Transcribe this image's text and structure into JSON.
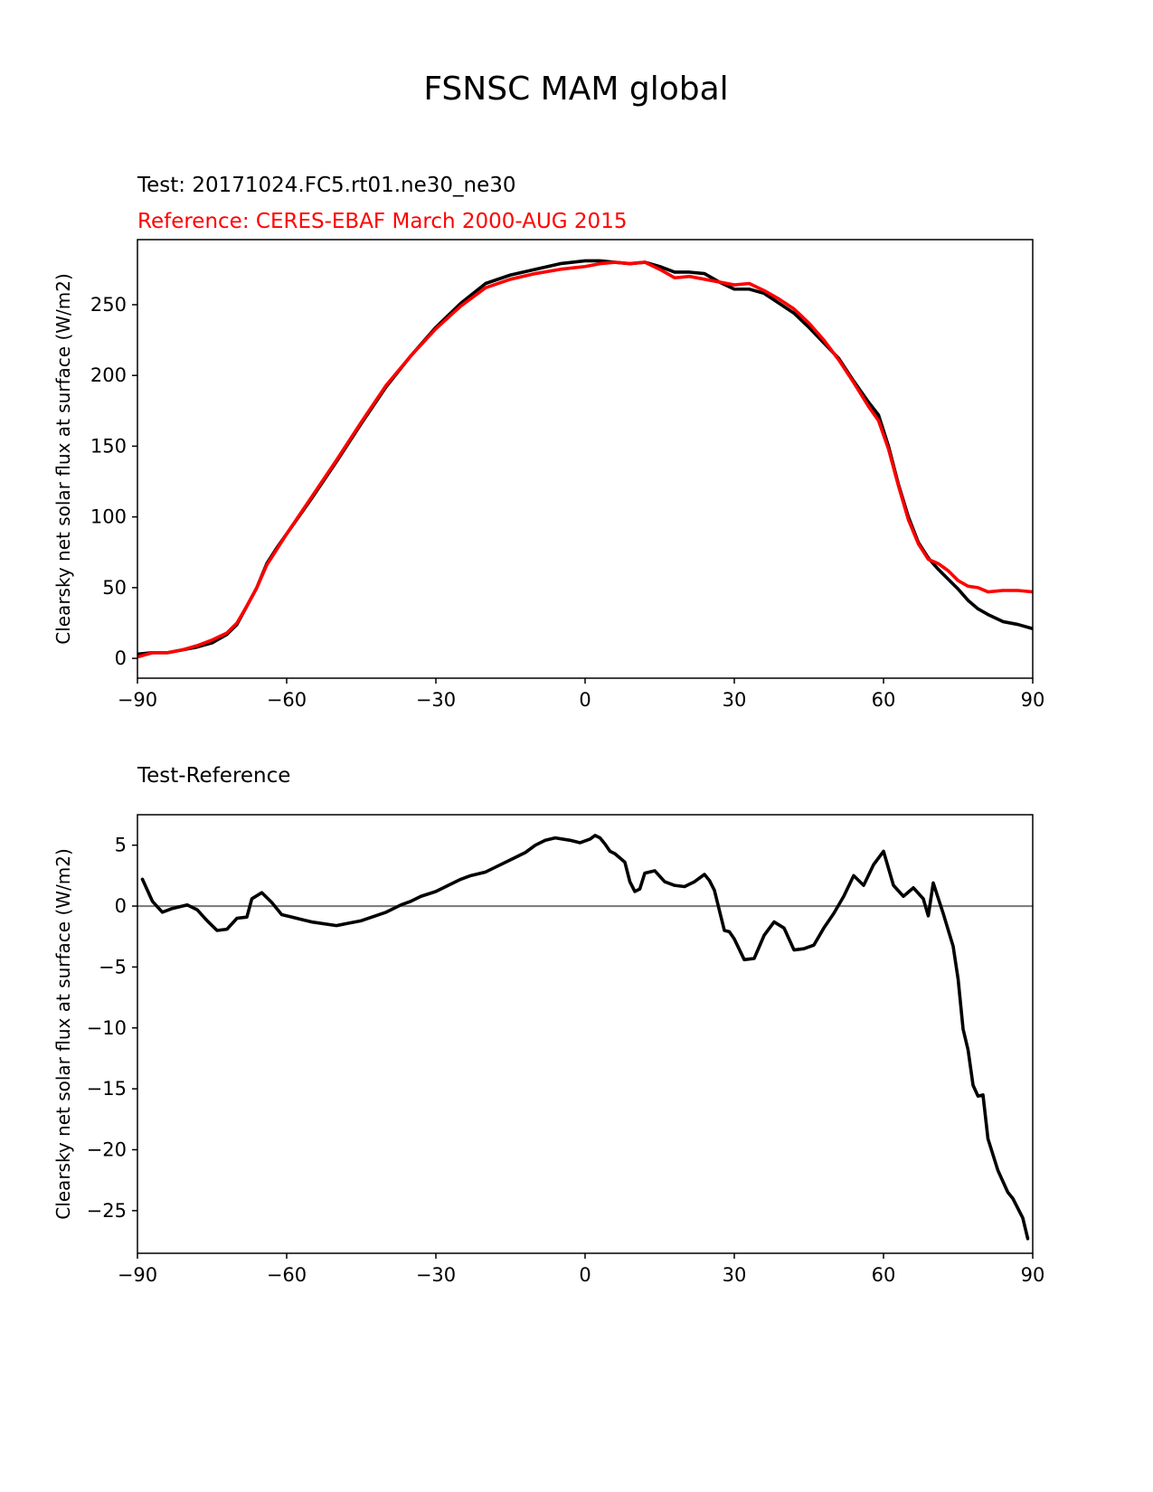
{
  "figure": {
    "title": "FSNSC MAM global"
  },
  "colors": {
    "test": "#000000",
    "reference": "#ff0000",
    "zero_line": "#808080"
  },
  "chart_data": [
    {
      "type": "line",
      "title_test": "Test: 20171024.FC5.rt01.ne30_ne30",
      "title_reference": "Reference: CERES-EBAF March 2000-AUG 2015",
      "ylabel": "Clearsky net solar flux at surface (W/m2)",
      "xlim": [
        -90,
        90
      ],
      "ylim": [
        -14,
        296
      ],
      "xticks": [
        -90,
        -60,
        -30,
        0,
        30,
        60,
        90
      ],
      "yticks": [
        0,
        50,
        100,
        150,
        200,
        250
      ],
      "grid": false,
      "series": [
        {
          "key": "test",
          "x": [
            -90,
            -87,
            -84,
            -81,
            -78,
            -75,
            -72,
            -70,
            -68,
            -66,
            -64,
            -62,
            -60,
            -55,
            -50,
            -45,
            -40,
            -35,
            -30,
            -25,
            -20,
            -15,
            -10,
            -5,
            0,
            3,
            6,
            9,
            12,
            15,
            18,
            21,
            24,
            27,
            30,
            33,
            36,
            39,
            42,
            45,
            48,
            51,
            54,
            57,
            59,
            61,
            63,
            65,
            67,
            69,
            71,
            73,
            75,
            77,
            79,
            81,
            84,
            87,
            90
          ],
          "y": [
            3,
            4,
            4,
            6,
            8,
            11,
            17,
            24,
            37,
            50,
            67,
            78,
            88,
            113,
            139,
            166,
            192,
            214,
            234,
            251,
            265,
            271,
            275,
            279,
            281,
            281,
            280,
            279,
            280,
            277,
            273,
            273,
            272,
            266,
            261,
            261,
            258,
            251,
            244,
            234,
            223,
            212,
            196,
            181,
            172,
            150,
            123,
            100,
            82,
            71,
            63,
            56,
            49,
            41,
            35,
            31,
            26,
            24,
            21
          ]
        },
        {
          "key": "reference",
          "x": [
            -90,
            -87,
            -84,
            -81,
            -78,
            -75,
            -72,
            -70,
            -68,
            -66,
            -64,
            -62,
            -60,
            -55,
            -50,
            -45,
            -40,
            -35,
            -30,
            -25,
            -20,
            -15,
            -10,
            -5,
            0,
            3,
            6,
            9,
            12,
            15,
            18,
            21,
            24,
            27,
            30,
            33,
            36,
            39,
            42,
            45,
            48,
            51,
            54,
            57,
            59,
            61,
            63,
            65,
            67,
            69,
            71,
            73,
            75,
            77,
            79,
            81,
            84,
            87,
            90
          ],
          "y": [
            1,
            4,
            4,
            6,
            9,
            13,
            18,
            25,
            37,
            50,
            66,
            77,
            88,
            114,
            140,
            167,
            193,
            214,
            233,
            249,
            262,
            268,
            272,
            275,
            277,
            279,
            280,
            279,
            280,
            275,
            269,
            270,
            268,
            266,
            264,
            265,
            260,
            254,
            247,
            237,
            225,
            211,
            195,
            178,
            168,
            148,
            122,
            98,
            81,
            70,
            67,
            62,
            55,
            51,
            50,
            47,
            48,
            48,
            47
          ]
        }
      ]
    },
    {
      "type": "line",
      "title": "Test-Reference",
      "ylabel": "Clearsky net solar flux at surface (W/m2)",
      "xlim": [
        -90,
        90
      ],
      "ylim": [
        -28.5,
        7.5
      ],
      "xticks": [
        -90,
        -60,
        -30,
        0,
        30,
        60,
        90
      ],
      "yticks": [
        5,
        0,
        -5,
        -10,
        -15,
        -20,
        -25
      ],
      "grid": false,
      "zero_line": 0,
      "series": [
        {
          "key": "test",
          "x": [
            -89,
            -87,
            -85,
            -83,
            -80,
            -78,
            -76,
            -74,
            -72,
            -70,
            -68,
            -67,
            -65,
            -63,
            -61,
            -59,
            -57,
            -55,
            -50,
            -45,
            -40,
            -37,
            -35,
            -33,
            -30,
            -27,
            -25,
            -23,
            -20,
            -18,
            -15,
            -12,
            -10,
            -8,
            -6,
            -3,
            -1,
            1,
            2,
            3,
            4,
            5,
            6,
            8,
            9,
            10,
            11,
            12,
            14,
            16,
            18,
            20,
            22,
            24,
            25,
            26,
            28,
            29,
            30,
            32,
            34,
            36,
            38,
            40,
            42,
            44,
            46,
            48,
            50,
            52,
            54,
            56,
            58,
            60,
            62,
            64,
            66,
            68,
            69,
            70,
            72,
            74,
            75,
            76,
            77,
            78,
            79,
            80,
            81,
            83,
            85,
            86,
            88,
            89
          ],
          "y": [
            2.2,
            0.4,
            -0.5,
            -0.2,
            0.1,
            -0.3,
            -1.2,
            -2.0,
            -1.9,
            -1.0,
            -0.9,
            0.6,
            1.1,
            0.3,
            -0.7,
            -0.9,
            -1.1,
            -1.3,
            -1.6,
            -1.2,
            -0.5,
            0.1,
            0.4,
            0.8,
            1.2,
            1.8,
            2.2,
            2.5,
            2.8,
            3.2,
            3.8,
            4.4,
            5.0,
            5.4,
            5.6,
            5.4,
            5.2,
            5.5,
            5.8,
            5.6,
            5.1,
            4.5,
            4.3,
            3.6,
            2.0,
            1.2,
            1.4,
            2.7,
            2.9,
            2.0,
            1.7,
            1.6,
            2.0,
            2.6,
            2.1,
            1.3,
            -2.0,
            -2.1,
            -2.7,
            -4.4,
            -4.3,
            -2.4,
            -1.3,
            -1.8,
            -3.6,
            -3.5,
            -3.2,
            -1.8,
            -0.6,
            0.8,
            2.5,
            1.7,
            3.4,
            4.5,
            1.7,
            0.8,
            1.5,
            0.6,
            -0.8,
            1.9,
            -0.6,
            -3.3,
            -6.0,
            -10.1,
            -11.8,
            -14.7,
            -15.6,
            -15.5,
            -19.1,
            -21.7,
            -23.5,
            -24.0,
            -25.6,
            -27.3
          ]
        }
      ]
    }
  ]
}
